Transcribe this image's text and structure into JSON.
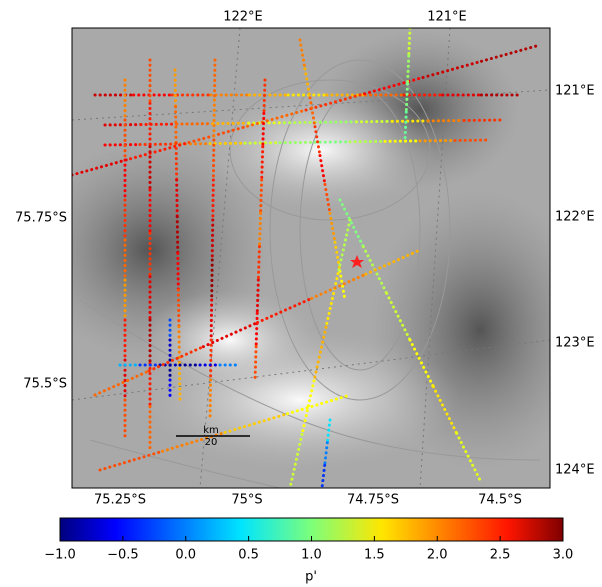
{
  "map": {
    "top_labels": [
      "122°E",
      "121°E"
    ],
    "right_labels": [
      "121°E",
      "122°E",
      "123°E",
      "124°E"
    ],
    "left_labels": [
      "75.75°S",
      "75.5°S"
    ],
    "bottom_labels": [
      "75.25°S",
      "75°S",
      "74.75°S",
      "74.5°S"
    ],
    "scale_bar": {
      "unit": "km",
      "length": "20"
    },
    "tracks": [
      {
        "values": [
          2.7,
          2.5,
          2.3,
          2.0,
          1.8,
          1.6,
          1.8,
          2.1,
          2.4,
          2.6,
          2.8
        ]
      },
      {
        "values": [
          2.6,
          2.4,
          2.1,
          1.8,
          1.4,
          1.2,
          1.1,
          1.3,
          1.6,
          2.0,
          2.3
        ]
      },
      {
        "values": [
          2.5,
          2.3,
          2.0,
          1.7,
          1.3,
          1.1,
          1.0,
          1.2,
          1.5,
          1.9,
          2.2
        ]
      },
      {
        "values": [
          2.6,
          2.4,
          2.2,
          2.1,
          2.3,
          2.5,
          2.7,
          2.8
        ]
      },
      {
        "values": [
          2.0,
          2.2,
          2.5,
          2.3,
          2.1,
          1.9,
          2.4,
          2.6,
          2.2
        ]
      },
      {
        "values": [
          2.2,
          2.4,
          2.7,
          2.5,
          2.3,
          2.6,
          2.8,
          2.4,
          2.1
        ]
      },
      {
        "values": [
          1.9,
          2.1,
          2.3,
          2.6,
          2.8,
          2.5,
          2.2,
          2.0,
          1.8
        ]
      },
      {
        "values": [
          2.1,
          2.0,
          2.2,
          2.4,
          2.7,
          2.9,
          2.6,
          2.3,
          2.0
        ]
      },
      {
        "values": [
          2.3,
          2.5,
          2.4,
          2.2,
          2.0,
          2.3,
          2.6,
          2.5,
          2.2
        ]
      },
      {
        "values": [
          2.0,
          1.8,
          2.1,
          2.3,
          2.5,
          2.2,
          1.9,
          1.7,
          1.5
        ]
      },
      {
        "values": [
          0.2,
          -0.3,
          -0.8,
          -0.9,
          -0.6,
          0.0
        ]
      },
      {
        "values": [
          -0.2,
          -0.7,
          -0.9,
          -0.5
        ]
      },
      {
        "values": [
          1.0,
          1.2,
          1.3,
          1.5,
          1.6,
          1.4
        ]
      },
      {
        "values": [
          1.2,
          1.6,
          1.8,
          1.5,
          1.3
        ]
      },
      {
        "values": [
          0.4,
          0.0,
          -0.3
        ]
      },
      {
        "values": [
          2.1,
          2.3,
          2.6,
          2.4,
          2.0,
          1.8
        ]
      },
      {
        "values": [
          2.2,
          2.0,
          1.7,
          1.5
        ]
      },
      {
        "values": [
          1.3,
          1.1,
          1.0,
          0.9
        ]
      }
    ]
  },
  "colorbar": {
    "label": "p'",
    "clim": [
      -1,
      3
    ],
    "ticks": [
      {
        "value": -1,
        "label": "−1.0"
      },
      {
        "value": -0.5,
        "label": "−0.5"
      },
      {
        "value": 0,
        "label": "0.0"
      },
      {
        "value": 0.5,
        "label": "0.5"
      },
      {
        "value": 1,
        "label": "1.0"
      },
      {
        "value": 1.5,
        "label": "1.5"
      },
      {
        "value": 2,
        "label": "2.0"
      },
      {
        "value": 2.5,
        "label": "2.5"
      },
      {
        "value": 3,
        "label": "3.0"
      }
    ]
  }
}
